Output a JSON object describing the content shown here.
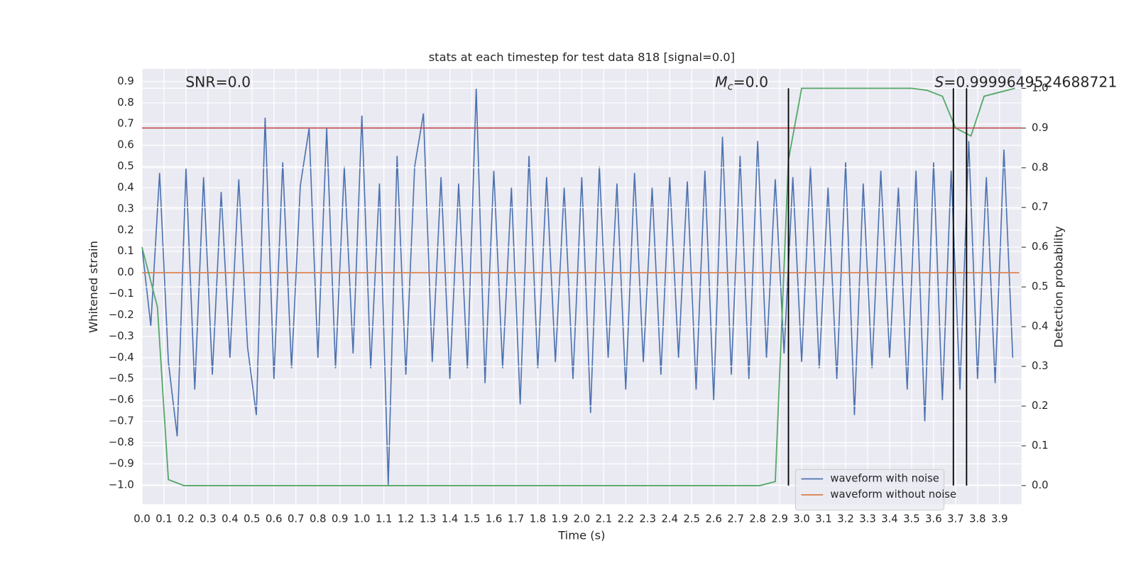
{
  "chart_data": {
    "type": "line",
    "title": "stats at each timestep for test data 818 [signal=0.0]",
    "xlabel": "Time (s)",
    "ylabel": "Whitened strain",
    "y2label": "Detection probability",
    "xlim": [
      0,
      4
    ],
    "ylim": [
      -1.09,
      0.96
    ],
    "y2lim": [
      -0.047,
      1.049
    ],
    "xticks": [
      {
        "value": 0,
        "label": "0.0"
      },
      0.1,
      0.2,
      0.3,
      0.4,
      0.5,
      0.6,
      0.7,
      0.8,
      0.9,
      {
        "value": 1,
        "label": "1.0"
      },
      1.1,
      1.2,
      1.3,
      1.4,
      1.5,
      1.6,
      1.7,
      1.8,
      1.9,
      {
        "value": 2,
        "label": "2.0"
      },
      2.1,
      2.2,
      2.3,
      2.4,
      2.5,
      2.6,
      2.7,
      2.8,
      2.9,
      {
        "value": 3,
        "label": "3.0"
      },
      3.1,
      3.2,
      3.3,
      3.4,
      3.5,
      3.6,
      3.7,
      3.8,
      3.9
    ],
    "yticks": [
      0.9,
      0.8,
      0.7,
      0.6,
      0.5,
      0.4,
      0.3,
      0.2,
      0.1,
      {
        "value": 0,
        "label": "0.0"
      },
      {
        "value": -0.1,
        "label": "−0.1"
      },
      {
        "value": -0.2,
        "label": "−0.2"
      },
      {
        "value": -0.3,
        "label": "−0.3"
      },
      {
        "value": -0.4,
        "label": "−0.4"
      },
      {
        "value": -0.5,
        "label": "−0.5"
      },
      {
        "value": -0.6,
        "label": "−0.6"
      },
      {
        "value": -0.7,
        "label": "−0.7"
      },
      {
        "value": -0.8,
        "label": "−0.8"
      },
      {
        "value": -0.9,
        "label": "−0.9"
      },
      {
        "value": -1,
        "label": "−1.0"
      }
    ],
    "y2ticks": [
      {
        "value": 1,
        "label": "1.0"
      },
      0.9,
      0.8,
      0.7,
      0.6,
      0.5,
      0.4,
      0.3,
      0.2,
      0.1,
      {
        "value": 0,
        "label": "0.0"
      }
    ],
    "grid": true,
    "legend": "lower right",
    "series": [
      {
        "name": "waveform with noise",
        "color": "#4c72b0",
        "x": [
          0.0,
          0.04,
          0.08,
          0.12,
          0.16,
          0.2,
          0.24,
          0.28,
          0.32,
          0.36,
          0.4,
          0.44,
          0.48,
          0.52,
          0.56,
          0.6,
          0.64,
          0.68,
          0.72,
          0.76,
          0.8,
          0.84,
          0.88,
          0.92,
          0.96,
          1.0,
          1.04,
          1.08,
          1.12,
          1.16,
          1.2,
          1.24,
          1.28,
          1.32,
          1.36,
          1.4,
          1.44,
          1.48,
          1.52,
          1.56,
          1.6,
          1.64,
          1.68,
          1.72,
          1.76,
          1.8,
          1.84,
          1.88,
          1.92,
          1.96,
          2.0,
          2.04,
          2.08,
          2.12,
          2.16,
          2.2,
          2.24,
          2.28,
          2.32,
          2.36,
          2.4,
          2.44,
          2.48,
          2.52,
          2.56,
          2.6,
          2.64,
          2.68,
          2.72,
          2.76,
          2.8,
          2.84,
          2.88,
          2.92,
          2.96,
          3.0,
          3.04,
          3.08,
          3.12,
          3.16,
          3.2,
          3.24,
          3.28,
          3.32,
          3.36,
          3.4,
          3.44,
          3.48,
          3.52,
          3.56,
          3.6,
          3.64,
          3.68,
          3.72,
          3.76,
          3.8,
          3.84,
          3.88,
          3.92,
          3.96
        ],
        "values": [
          0.12,
          -0.25,
          0.47,
          -0.42,
          -0.77,
          0.49,
          -0.55,
          0.45,
          -0.48,
          0.38,
          -0.4,
          0.44,
          -0.35,
          -0.67,
          0.73,
          -0.5,
          0.52,
          -0.45,
          0.41,
          0.68,
          -0.4,
          0.68,
          -0.45,
          0.5,
          -0.38,
          0.74,
          -0.45,
          0.42,
          -1.0,
          0.55,
          -0.48,
          0.5,
          0.75,
          -0.42,
          0.45,
          -0.5,
          0.42,
          -0.45,
          0.87,
          -0.52,
          0.48,
          -0.45,
          0.4,
          -0.62,
          0.55,
          -0.45,
          0.45,
          -0.42,
          0.4,
          -0.5,
          0.45,
          -0.66,
          0.5,
          -0.4,
          0.42,
          -0.55,
          0.47,
          -0.42,
          0.4,
          -0.48,
          0.45,
          -0.4,
          0.43,
          -0.55,
          0.48,
          -0.6,
          0.64,
          -0.48,
          0.55,
          -0.5,
          0.62,
          -0.4,
          0.44,
          -0.38,
          0.45,
          -0.42,
          0.5,
          -0.45,
          0.4,
          -0.5,
          0.52,
          -0.67,
          0.42,
          -0.45,
          0.48,
          -0.4,
          0.4,
          -0.55,
          0.48,
          -0.7,
          0.52,
          -0.6,
          0.48,
          -0.55,
          0.62,
          -0.5,
          0.45,
          -0.52,
          0.58,
          -0.4
        ]
      },
      {
        "name": "waveform without noise",
        "color": "#dd8452",
        "x": [
          0.0,
          3.99
        ],
        "values": [
          0.0,
          0.0
        ]
      },
      {
        "color": "#55a868",
        "axis": "y2",
        "x": [
          0.0,
          0.07,
          0.12,
          0.19,
          2.81,
          2.88,
          2.94,
          3.0,
          3.5,
          3.57,
          3.64,
          3.7,
          3.77,
          3.83,
          3.9,
          3.97
        ],
        "values": [
          0.6,
          0.45,
          0.015,
          0.0,
          0.0,
          0.01,
          0.82,
          1.0,
          1.0,
          0.995,
          0.98,
          0.9,
          0.88,
          0.98,
          0.99,
          0.99996
        ]
      }
    ],
    "hlines": [
      {
        "y": 0.9,
        "axis": "y2",
        "color": "#c44e52"
      }
    ],
    "vlines": [
      {
        "x": 2.94
      },
      {
        "x": 3.69
      },
      {
        "x": 3.75
      }
    ],
    "vline_range": [
      0,
      1
    ],
    "vline_color": "#000000",
    "annotations": [
      {
        "text": "SNR=0.0"
      },
      {
        "symbol": "M",
        "subscript": "c",
        "text": "=0.0"
      },
      {
        "symbol": "S",
        "text": "=0.9999649524688721"
      }
    ]
  }
}
